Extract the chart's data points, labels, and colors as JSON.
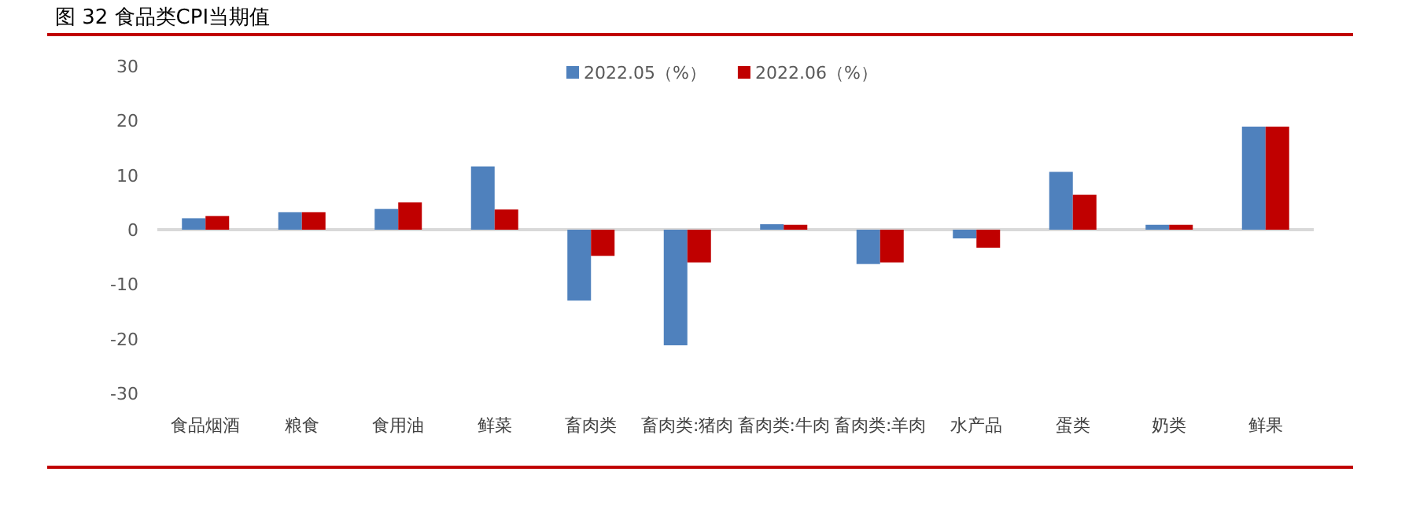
{
  "chart_data": {
    "type": "bar",
    "title": "图 32 食品类CPI当期值",
    "categories": [
      "食品烟酒",
      "粮食",
      "食用油",
      "鲜菜",
      "畜肉类",
      "畜肉类:猪肉",
      "畜肉类:牛肉",
      "畜肉类:羊肉",
      "水产品",
      "蛋类",
      "奶类",
      "鲜果"
    ],
    "series": [
      {
        "name": "2022.05（%）",
        "color": "#4f81bd",
        "values": [
          2.1,
          3.2,
          3.8,
          11.6,
          -13.0,
          -21.2,
          1.0,
          -6.3,
          -1.6,
          10.6,
          0.9,
          18.9
        ]
      },
      {
        "name": "2022.06（%）",
        "color": "#c00000",
        "values": [
          2.5,
          3.2,
          5.0,
          3.7,
          -4.8,
          -6.0,
          0.9,
          -6.0,
          -3.3,
          6.4,
          0.9,
          18.9
        ]
      }
    ],
    "ylim": [
      -30,
      30
    ],
    "yticks": [
      -30,
      -20,
      -10,
      0,
      10,
      20,
      30
    ],
    "legend": "top"
  }
}
